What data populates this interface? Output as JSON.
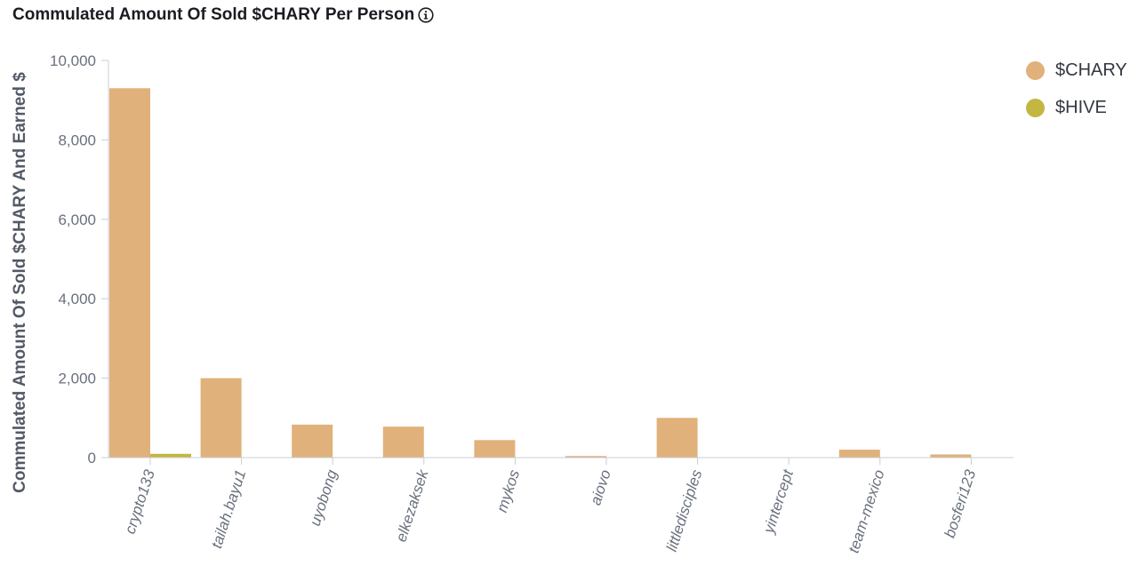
{
  "header": {
    "title": "Commulated Amount Of Sold $CHARY Per Person",
    "info_icon": "info-icon"
  },
  "colors": {
    "chary": "#e0b17a",
    "hive": "#c3b641",
    "axis": "#c9cdd4",
    "tick_text": "#69707d"
  },
  "chart_data": {
    "type": "bar",
    "title": "Commulated Amount Of Sold $CHARY Per Person",
    "xlabel": "",
    "ylabel": "Commulated Amount Of Sold $CHARY And Earned $",
    "ylim": [
      0,
      10000
    ],
    "yticks": [
      0,
      2000,
      4000,
      6000,
      8000,
      10000
    ],
    "ytick_labels": [
      "0",
      "2,000",
      "4,000",
      "6,000",
      "8,000",
      "10,000"
    ],
    "categories": [
      "crypto133",
      "tailah.bayu1",
      "uyobong",
      "elkezaksek",
      "mykos",
      "aiovo",
      "littledisciples",
      "yintercept",
      "team-mexico",
      "bosferi123"
    ],
    "series": [
      {
        "name": "$CHARY",
        "values": [
          9300,
          2000,
          830,
          780,
          440,
          40,
          1000,
          0,
          200,
          80
        ]
      },
      {
        "name": "$HIVE",
        "values": [
          95,
          0,
          0,
          0,
          0,
          0,
          0,
          0,
          0,
          0
        ]
      }
    ],
    "legend_position": "top-right",
    "grid": false
  }
}
